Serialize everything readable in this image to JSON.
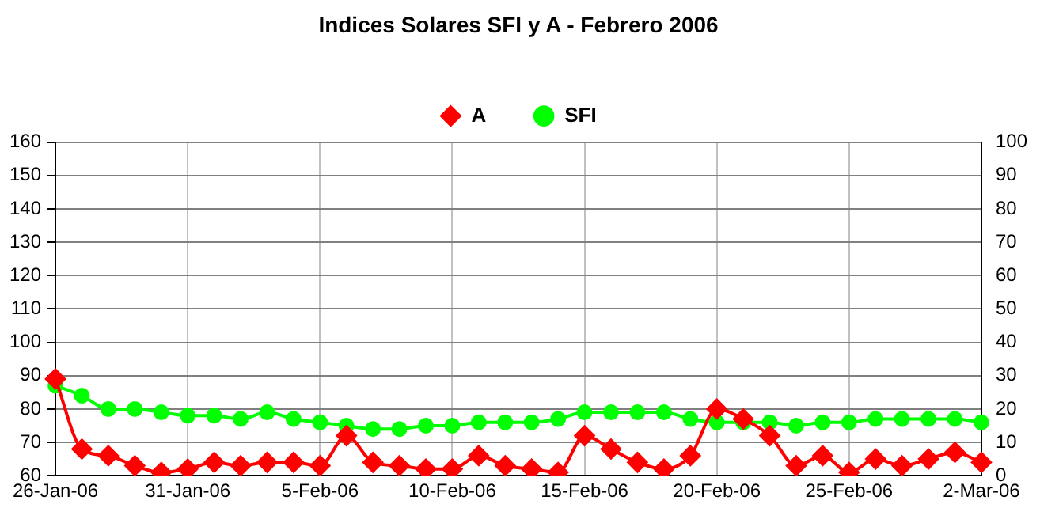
{
  "chart_data": {
    "type": "line",
    "title": "Indices Solares SFI y A - Febrero 2006",
    "categories": [
      "26-Jan-06",
      null,
      null,
      null,
      null,
      "31-Jan-06",
      null,
      null,
      null,
      null,
      "5-Feb-06",
      null,
      null,
      null,
      null,
      "10-Feb-06",
      null,
      null,
      null,
      null,
      "15-Feb-06",
      null,
      null,
      null,
      null,
      "20-Feb-06",
      null,
      null,
      null,
      null,
      "25-Feb-06",
      null,
      null,
      null,
      null,
      "2-Mar-06"
    ],
    "series": [
      {
        "name": "SFI",
        "color": "#00ff00",
        "marker": "circle",
        "values": [
          87,
          84,
          80,
          80,
          79,
          78,
          78,
          77,
          79,
          77,
          76,
          75,
          74,
          74,
          75,
          75,
          76,
          76,
          76,
          77,
          79,
          79,
          79,
          79,
          77,
          76,
          76,
          76,
          75,
          76,
          76,
          77,
          77,
          77,
          77,
          76
        ]
      },
      {
        "name": "A",
        "color": "#ff0000",
        "marker": "diamond",
        "axis": "y2",
        "values": [
          29,
          8,
          6,
          3,
          1,
          2,
          4,
          3,
          4,
          4,
          3,
          12,
          4,
          3,
          2,
          2,
          6,
          3,
          2,
          1,
          12,
          8,
          4,
          2,
          6,
          20,
          17,
          12,
          3,
          6,
          1,
          5,
          3,
          5,
          7,
          4
        ]
      }
    ],
    "ylim": [
      60,
      160
    ],
    "yticks": [
      60,
      70,
      80,
      90,
      100,
      110,
      120,
      130,
      140,
      150,
      160
    ],
    "y2lim": [
      0,
      100
    ],
    "y2ticks": [
      0,
      10,
      20,
      30,
      40,
      50,
      60,
      70,
      80,
      90,
      100
    ],
    "grid": true,
    "legend": "top"
  }
}
